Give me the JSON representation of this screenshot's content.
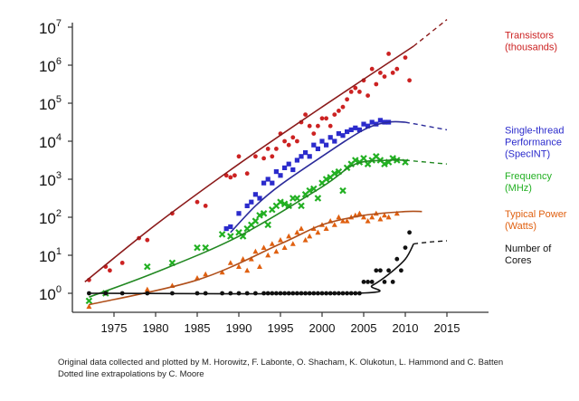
{
  "chart_data": {
    "type": "scatter",
    "title": "",
    "xlabel": "",
    "ylabel": "",
    "xlim": [
      1970,
      2020
    ],
    "ylim_log10": [
      -0.5,
      7
    ],
    "x_ticks": [
      1975,
      1980,
      1985,
      1990,
      1995,
      2000,
      2005,
      2010,
      2015
    ],
    "x_tick_labels": [
      "1975",
      "1980",
      "1985",
      "1990",
      "1995",
      "2000",
      "2005",
      "2010",
      "2015"
    ],
    "y_ticks_log10": [
      0,
      1,
      2,
      3,
      4,
      5,
      6,
      7
    ],
    "y_tick_labels": [
      {
        "base": "10",
        "exp": "0"
      },
      {
        "base": "10",
        "exp": "1"
      },
      {
        "base": "10",
        "exp": "2"
      },
      {
        "base": "10",
        "exp": "3"
      },
      {
        "base": "10",
        "exp": "4"
      },
      {
        "base": "10",
        "exp": "5"
      },
      {
        "base": "10",
        "exp": "6"
      },
      {
        "base": "10",
        "exp": "7"
      }
    ],
    "series": [
      {
        "name": "Transistors (thousands)",
        "legend_lines": [
          "Transistors",
          "(thousands)"
        ],
        "legend_y_log10": 6.7,
        "color": "#cc2222",
        "line_color": "#8b1a1a",
        "marker": "circle",
        "trend": [
          [
            1971.5,
            0.3
          ],
          [
            1980,
            1.8
          ],
          [
            1990,
            3.4
          ],
          [
            2000,
            4.9
          ],
          [
            2011,
            6.5
          ]
        ],
        "extrapolation": [
          [
            2011,
            6.5
          ],
          [
            2015,
            7.2
          ]
        ],
        "points": [
          [
            1972,
            0.35
          ],
          [
            1974,
            0.7
          ],
          [
            1974.5,
            0.6
          ],
          [
            1976,
            0.8
          ],
          [
            1978,
            1.45
          ],
          [
            1979,
            1.4
          ],
          [
            1982,
            2.1
          ],
          [
            1985,
            2.4
          ],
          [
            1986,
            2.3
          ],
          [
            1988.5,
            3.1
          ],
          [
            1989,
            3.05
          ],
          [
            1989.5,
            3.1
          ],
          [
            1990,
            3.6
          ],
          [
            1991,
            3.15
          ],
          [
            1992,
            3.6
          ],
          [
            1993,
            3.55
          ],
          [
            1993.5,
            3.8
          ],
          [
            1994,
            3.6
          ],
          [
            1994.5,
            3.8
          ],
          [
            1995,
            4.2
          ],
          [
            1995.5,
            4.0
          ],
          [
            1996,
            3.9
          ],
          [
            1996.5,
            4.1
          ],
          [
            1997,
            4.0
          ],
          [
            1997.5,
            4.5
          ],
          [
            1998,
            4.7
          ],
          [
            1998.5,
            4.4
          ],
          [
            1999,
            4.2
          ],
          [
            1999.5,
            4.4
          ],
          [
            2000,
            4.6
          ],
          [
            2000.5,
            4.6
          ],
          [
            2001,
            4.4
          ],
          [
            2001.5,
            4.7
          ],
          [
            2002,
            4.8
          ],
          [
            2002.5,
            4.9
          ],
          [
            2003,
            5.1
          ],
          [
            2003.5,
            5.3
          ],
          [
            2004,
            5.4
          ],
          [
            2004.5,
            5.3
          ],
          [
            2005,
            5.6
          ],
          [
            2005.5,
            5.2
          ],
          [
            2006,
            5.9
          ],
          [
            2006.5,
            5.5
          ],
          [
            2007,
            5.8
          ],
          [
            2007.5,
            5.7
          ],
          [
            2008,
            6.3
          ],
          [
            2008.5,
            5.8
          ],
          [
            2009,
            5.9
          ],
          [
            2010,
            6.2
          ],
          [
            2010.5,
            5.6
          ]
        ]
      },
      {
        "name": "Single-thread Performance (SpecINT)",
        "legend_lines": [
          "Single-thread",
          "Performance",
          "(SpecINT)"
        ],
        "legend_y_log10": 4.2,
        "color": "#2b2bcc",
        "line_color": "#2b2b9a",
        "marker": "square",
        "trend": [
          [
            1989,
            1.6
          ],
          [
            1992,
            2.3
          ],
          [
            1995,
            2.85
          ],
          [
            2000,
            3.6
          ],
          [
            2005,
            4.3
          ],
          [
            2008,
            4.5
          ],
          [
            2010,
            4.5
          ]
        ],
        "extrapolation": [
          [
            2010,
            4.5
          ],
          [
            2015,
            4.3
          ]
        ],
        "points": [
          [
            1988.5,
            1.7
          ],
          [
            1989,
            1.75
          ],
          [
            1990,
            2.1
          ],
          [
            1991,
            2.3
          ],
          [
            1991.5,
            2.4
          ],
          [
            1992,
            2.6
          ],
          [
            1992.5,
            2.5
          ],
          [
            1993,
            2.9
          ],
          [
            1993.5,
            3.0
          ],
          [
            1994,
            2.9
          ],
          [
            1994.5,
            3.2
          ],
          [
            1995,
            3.1
          ],
          [
            1995.5,
            3.3
          ],
          [
            1996,
            3.4
          ],
          [
            1996.5,
            3.25
          ],
          [
            1997,
            3.5
          ],
          [
            1997.5,
            3.6
          ],
          [
            1998,
            3.7
          ],
          [
            1998.5,
            3.6
          ],
          [
            1999,
            3.9
          ],
          [
            1999.5,
            3.8
          ],
          [
            2000,
            4.0
          ],
          [
            2000.5,
            3.9
          ],
          [
            2001,
            4.1
          ],
          [
            2001.5,
            4.0
          ],
          [
            2002,
            4.2
          ],
          [
            2002.5,
            4.15
          ],
          [
            2003,
            4.25
          ],
          [
            2003.5,
            4.3
          ],
          [
            2004,
            4.35
          ],
          [
            2004.5,
            4.3
          ],
          [
            2005,
            4.45
          ],
          [
            2005.5,
            4.4
          ],
          [
            2006,
            4.5
          ],
          [
            2006.5,
            4.45
          ],
          [
            2007,
            4.55
          ],
          [
            2007.5,
            4.5
          ],
          [
            2008,
            4.5
          ]
        ]
      },
      {
        "name": "Frequency (MHz)",
        "legend_lines": [
          "Frequency",
          "(MHz)"
        ],
        "legend_y_log10": 3.0,
        "color": "#22b022",
        "line_color": "#228822",
        "marker": "cross",
        "trend": [
          [
            1972,
            -0.1
          ],
          [
            1980,
            0.55
          ],
          [
            1990,
            1.5
          ],
          [
            2000,
            2.8
          ],
          [
            2004,
            3.4
          ],
          [
            2008,
            3.5
          ],
          [
            2010,
            3.5
          ]
        ],
        "extrapolation": [
          [
            2010,
            3.5
          ],
          [
            2015,
            3.4
          ]
        ],
        "points": [
          [
            1972,
            -0.2
          ],
          [
            1974,
            0.0
          ],
          [
            1979,
            0.7
          ],
          [
            1982,
            0.8
          ],
          [
            1985,
            1.2
          ],
          [
            1986,
            1.2
          ],
          [
            1988,
            1.55
          ],
          [
            1989,
            1.5
          ],
          [
            1990,
            1.6
          ],
          [
            1990.5,
            1.5
          ],
          [
            1991,
            1.7
          ],
          [
            1991.5,
            1.8
          ],
          [
            1992,
            1.9
          ],
          [
            1992.5,
            2.05
          ],
          [
            1993,
            2.1
          ],
          [
            1993.5,
            1.8
          ],
          [
            1994,
            2.2
          ],
          [
            1994.5,
            2.3
          ],
          [
            1995,
            2.4
          ],
          [
            1995.5,
            2.35
          ],
          [
            1996,
            2.3
          ],
          [
            1996.5,
            2.5
          ],
          [
            1997,
            2.5
          ],
          [
            1997.5,
            2.3
          ],
          [
            1998,
            2.6
          ],
          [
            1998.5,
            2.7
          ],
          [
            1999,
            2.75
          ],
          [
            1999.5,
            2.5
          ],
          [
            2000,
            2.9
          ],
          [
            2000.5,
            3.0
          ],
          [
            2001,
            3.05
          ],
          [
            2001.5,
            3.15
          ],
          [
            2002,
            3.2
          ],
          [
            2002.5,
            2.7
          ],
          [
            2003,
            3.3
          ],
          [
            2003.5,
            3.4
          ],
          [
            2004,
            3.5
          ],
          [
            2004.5,
            3.45
          ],
          [
            2005,
            3.55
          ],
          [
            2005.5,
            3.4
          ],
          [
            2006,
            3.5
          ],
          [
            2006.5,
            3.6
          ],
          [
            2007,
            3.5
          ],
          [
            2007.5,
            3.4
          ],
          [
            2008,
            3.45
          ],
          [
            2008.5,
            3.55
          ],
          [
            2009,
            3.5
          ],
          [
            2010,
            3.45
          ]
        ]
      },
      {
        "name": "Typical Power (Watts)",
        "legend_lines": [
          "Typical Power",
          "(Watts)"
        ],
        "legend_y_log10": 2.0,
        "color": "#e06010",
        "line_color": "#b04f1a",
        "marker": "triangle",
        "trend": [
          [
            1972,
            -0.3
          ],
          [
            1985,
            0.35
          ],
          [
            1995,
            1.3
          ],
          [
            2000,
            1.8
          ],
          [
            2005,
            2.05
          ],
          [
            2010,
            2.15
          ],
          [
            2012,
            2.15
          ]
        ],
        "extrapolation": [],
        "points": [
          [
            1972,
            -0.35
          ],
          [
            1979,
            0.1
          ],
          [
            1982,
            0.2
          ],
          [
            1985,
            0.4
          ],
          [
            1986,
            0.5
          ],
          [
            1988,
            0.55
          ],
          [
            1989,
            0.8
          ],
          [
            1990,
            0.7
          ],
          [
            1990.5,
            0.9
          ],
          [
            1991,
            0.6
          ],
          [
            1991.5,
            0.9
          ],
          [
            1992,
            1.1
          ],
          [
            1992.5,
            0.7
          ],
          [
            1993,
            1.2
          ],
          [
            1993.5,
            1.0
          ],
          [
            1994,
            1.3
          ],
          [
            1994.5,
            1.1
          ],
          [
            1995,
            1.4
          ],
          [
            1995.5,
            1.2
          ],
          [
            1996,
            1.5
          ],
          [
            1996.5,
            1.3
          ],
          [
            1997,
            1.6
          ],
          [
            1997.5,
            1.7
          ],
          [
            1998,
            1.4
          ],
          [
            1998.5,
            1.5
          ],
          [
            1999,
            1.7
          ],
          [
            1999.5,
            1.6
          ],
          [
            2000,
            1.8
          ],
          [
            2000.5,
            1.7
          ],
          [
            2001,
            1.9
          ],
          [
            2001.5,
            1.8
          ],
          [
            2002,
            2.0
          ],
          [
            2002.5,
            1.9
          ],
          [
            2003,
            1.9
          ],
          [
            2003.5,
            2.0
          ],
          [
            2004,
            2.05
          ],
          [
            2004.5,
            2.1
          ],
          [
            2005,
            2.0
          ],
          [
            2005.5,
            1.9
          ],
          [
            2006,
            2.0
          ],
          [
            2006.5,
            2.1
          ],
          [
            2007,
            1.95
          ],
          [
            2007.5,
            2.05
          ],
          [
            2008,
            2.0
          ],
          [
            2009,
            2.1
          ]
        ]
      },
      {
        "name": "Number of Cores",
        "legend_lines": [
          "Number of",
          "Cores"
        ],
        "legend_y_log10": 1.1,
        "color": "#111111",
        "line_color": "#111111",
        "marker": "circle",
        "trend": [
          [
            1972,
            0
          ],
          [
            2004,
            0
          ],
          [
            2006,
            0.2
          ],
          [
            2008,
            0.5
          ],
          [
            2010,
            0.9
          ],
          [
            2011,
            1.3
          ]
        ],
        "extrapolation": [
          [
            2011,
            1.3
          ],
          [
            2013,
            1.35
          ],
          [
            2015,
            1.38
          ]
        ],
        "points": [
          [
            1972,
            0
          ],
          [
            1974,
            0
          ],
          [
            1976,
            0
          ],
          [
            1979,
            0
          ],
          [
            1982,
            0
          ],
          [
            1985,
            0
          ],
          [
            1986,
            0
          ],
          [
            1988,
            0
          ],
          [
            1989,
            0
          ],
          [
            1990,
            0
          ],
          [
            1991,
            0
          ],
          [
            1992,
            0
          ],
          [
            1993,
            0
          ],
          [
            1993.5,
            0
          ],
          [
            1994,
            0
          ],
          [
            1994.5,
            0
          ],
          [
            1995,
            0
          ],
          [
            1995.5,
            0
          ],
          [
            1996,
            0
          ],
          [
            1996.5,
            0
          ],
          [
            1997,
            0
          ],
          [
            1997.5,
            0
          ],
          [
            1998,
            0
          ],
          [
            1998.5,
            0
          ],
          [
            1999,
            0
          ],
          [
            1999.5,
            0
          ],
          [
            2000,
            0
          ],
          [
            2000.5,
            0
          ],
          [
            2001,
            0
          ],
          [
            2001.5,
            0
          ],
          [
            2002,
            0
          ],
          [
            2002.5,
            0
          ],
          [
            2003,
            0
          ],
          [
            2003.5,
            0
          ],
          [
            2004,
            0
          ],
          [
            2004.5,
            0
          ],
          [
            2005,
            0.3
          ],
          [
            2005.5,
            0.3
          ],
          [
            2006,
            0.3
          ],
          [
            2006.5,
            0.6
          ],
          [
            2007,
            0.6
          ],
          [
            2007.5,
            0.3
          ],
          [
            2008,
            0.6
          ],
          [
            2008.5,
            0.3
          ],
          [
            2009,
            0.9
          ],
          [
            2009.5,
            0.6
          ],
          [
            2010,
            1.2
          ],
          [
            2010.5,
            1.6
          ]
        ]
      }
    ]
  },
  "caption": {
    "line1": "Original data collected and plotted by M. Horowitz, F. Labonte, O. Shacham, K. Olukotun, L. Hammond and C. Batten",
    "line2": "Dotted line extrapolations by C. Moore"
  }
}
